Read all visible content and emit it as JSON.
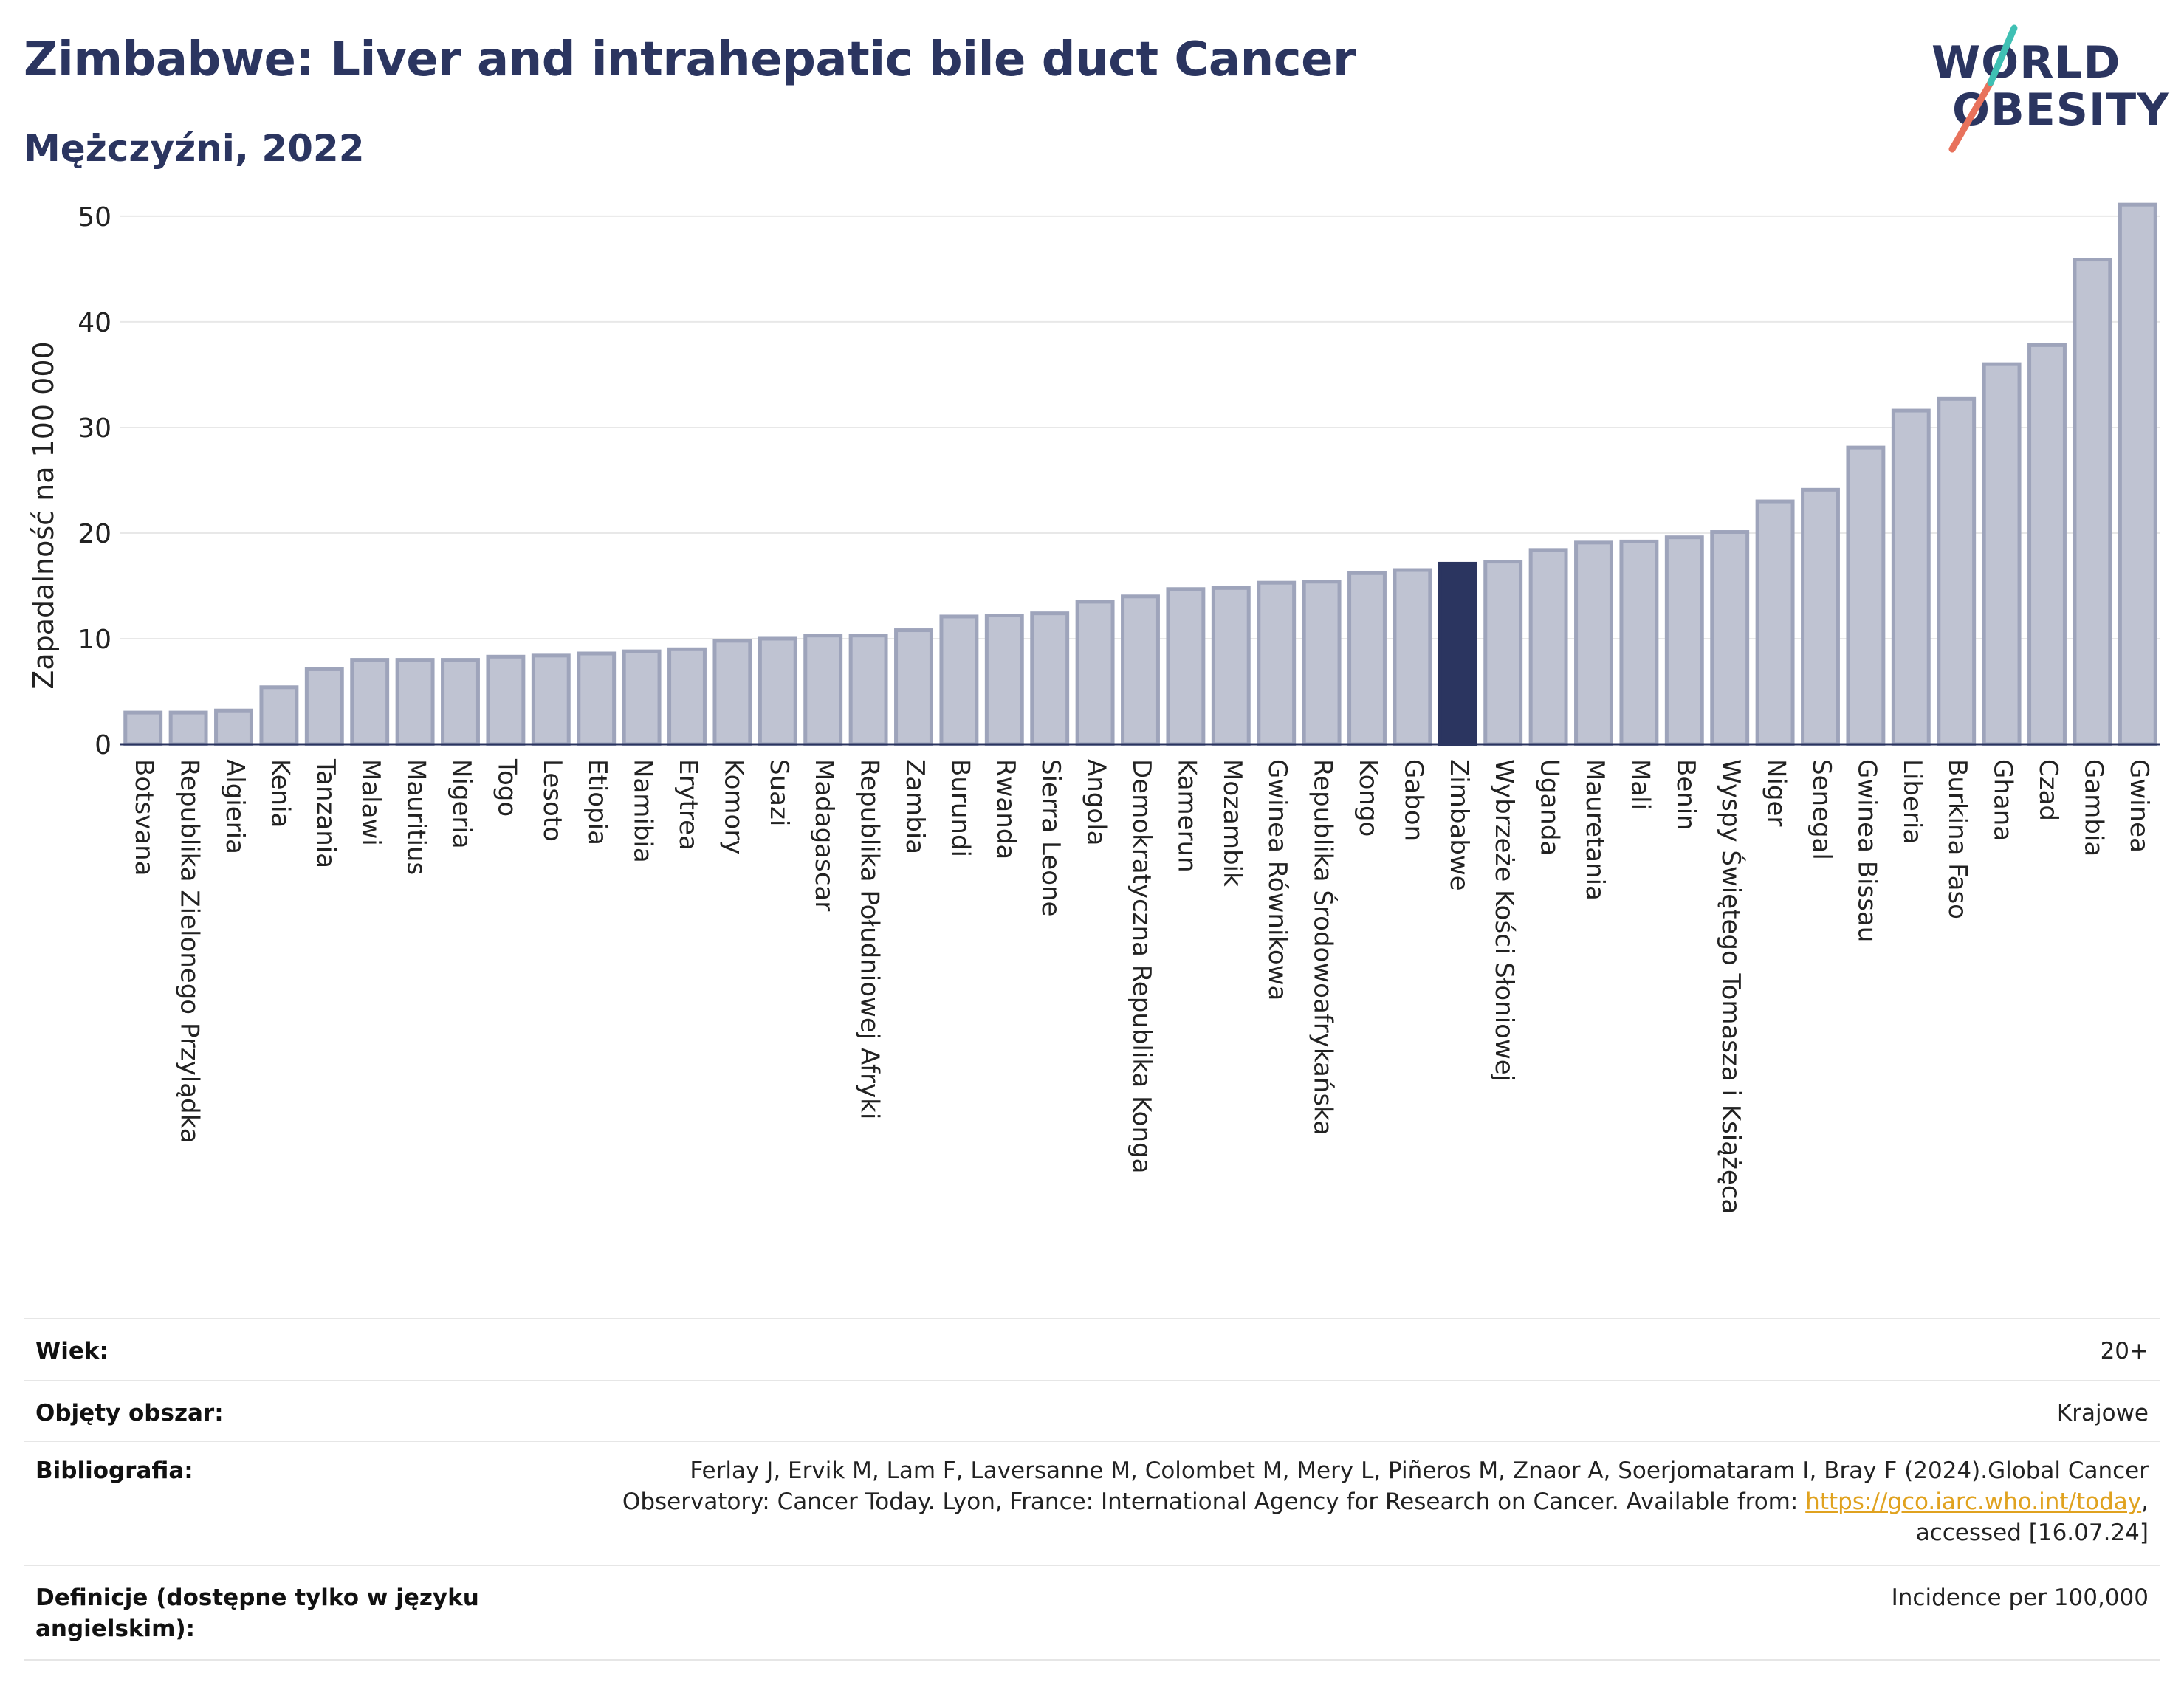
{
  "header": {
    "title": "Zimbabwe: Liver and intrahepatic bile duct Cancer",
    "subtitle": "Mężczyźni, 2022"
  },
  "logo": {
    "line1": "WORLD",
    "line2": "OBESITY",
    "slash_colors": [
      "#e8725c",
      "#3fc0b4"
    ]
  },
  "colors": {
    "bar": "#bfc3d2",
    "bar_stroke": "#9ea4bb",
    "highlight": "#2b3560",
    "grid": "#e8e8e8"
  },
  "chart_data": {
    "type": "bar",
    "ylabel": "Zapadalność na 100 000",
    "ylim": [
      0,
      53
    ],
    "yticks": [
      0,
      10,
      20,
      30,
      40,
      50
    ],
    "highlight": "Zimbabwe",
    "categories": [
      "Botsvana",
      "Republika Zielonego Przylądka",
      "Algieria",
      "Kenia",
      "Tanzania",
      "Malawi",
      "Mauritius",
      "Nigeria",
      "Togo",
      "Lesoto",
      "Etiopia",
      "Namibia",
      "Erytrea",
      "Komory",
      "Suazi",
      "Madagascar",
      "Republika Południowej Afryki",
      "Zambia",
      "Burundi",
      "Rwanda",
      "Sierra Leone",
      "Angola",
      "Demokratyczna Republika Konga",
      "Kamerun",
      "Mozambik",
      "Gwinea Równikowa",
      "Republika Środowoafrykańska",
      "Kongo",
      "Gabon",
      "Zimbabwe",
      "Wybrzeże Kości Słoniowej",
      "Uganda",
      "Mauretania",
      "Mali",
      "Benin",
      "Wyspy Świętego Tomasza i Książęca",
      "Niger",
      "Senegal",
      "Gwinea Bissau",
      "Liberia",
      "Burkina Faso",
      "Ghana",
      "Czad",
      "Gambia",
      "Gwinea"
    ],
    "values": [
      3.0,
      3.0,
      3.2,
      5.4,
      7.1,
      8.0,
      8.0,
      8.0,
      8.3,
      8.4,
      8.6,
      8.8,
      9.0,
      9.8,
      10.0,
      10.3,
      10.3,
      10.8,
      12.1,
      12.2,
      12.4,
      13.5,
      14.0,
      14.7,
      14.8,
      15.3,
      15.4,
      16.2,
      16.5,
      17.1,
      17.3,
      18.4,
      19.1,
      19.2,
      19.6,
      20.1,
      23.0,
      24.1,
      28.1,
      31.6,
      32.7,
      36.0,
      37.8,
      45.9,
      51.1
    ]
  },
  "meta": {
    "rows": [
      {
        "label": "Wiek:",
        "value": "20+"
      },
      {
        "label": "Objęty obszar:",
        "value": "Krajowe"
      },
      {
        "label": "Bibliografia:",
        "value_line1": "Ferlay J, Ervik M, Lam F, Laversanne M, Colombet M, Mery L, Piñeros M, Znaor A, Soerjomataram I, Bray F (2024).Global Cancer",
        "value_line2_pre": "Observatory: Cancer Today. Lyon, France: International Agency for Research on Cancer. Available from: ",
        "value_link": "https://gco.iarc.who.int/today",
        "value_line2_post": ",",
        "value_line3": "accessed [16.07.24]"
      },
      {
        "label_line1": "Definicje (dostępne tylko w języku",
        "label_line2": "angielskim):",
        "value": "Incidence per 100,000"
      }
    ]
  }
}
